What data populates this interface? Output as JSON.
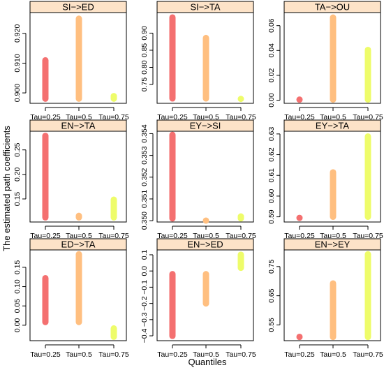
{
  "figure": {
    "ylabel": "The estimated path coefficients",
    "xlabel": "Quantiles",
    "bar_colors": [
      "#f47070",
      "#ffbf80",
      "#eefc6a"
    ]
  },
  "chart_data": [
    {
      "type": "bar",
      "title": "SI−>ED",
      "categories": [
        "Tau=0.25",
        "Tau=0.5",
        "Tau=0.75"
      ],
      "segments": [
        [
          0.897,
          0.912
        ],
        [
          0.897,
          0.926
        ],
        [
          0.897,
          0.9
        ]
      ],
      "ylim": [
        0.8965,
        0.927
      ],
      "yticks": [
        "0.900",
        "0.910",
        "0.920"
      ],
      "ytick_values": [
        0.9,
        0.91,
        0.92
      ]
    },
    {
      "type": "bar",
      "title": "SI−>TA",
      "categories": [
        "Tau=0.25",
        "Tau=0.5",
        "Tau=0.75"
      ],
      "segments": [
        [
          0.7,
          0.955
        ],
        [
          0.7,
          0.895
        ],
        [
          0.7,
          0.716
        ]
      ],
      "ylim": [
        0.695,
        0.96
      ],
      "yticks": [
        "0.75",
        "0.80",
        "0.85",
        "0.90"
      ],
      "ytick_values": [
        0.75,
        0.8,
        0.85,
        0.9
      ]
    },
    {
      "type": "bar",
      "title": "TA−>OU",
      "categories": [
        "Tau=0.25",
        "Tau=0.5",
        "Tau=0.75"
      ],
      "segments": [
        [
          -0.002,
          0.003
        ],
        [
          -0.002,
          0.069
        ],
        [
          -0.002,
          0.043
        ]
      ],
      "ylim": [
        -0.0025,
        0.0705
      ],
      "yticks": [
        "0.00",
        "0.02",
        "0.04",
        "0.06"
      ],
      "ytick_values": [
        0,
        0.02,
        0.04,
        0.06
      ]
    },
    {
      "type": "bar",
      "title": "EN−>TA",
      "categories": [
        "Tau=0.25",
        "Tau=0.5",
        "Tau=0.75"
      ],
      "segments": [
        [
          0.106,
          0.285
        ],
        [
          0.106,
          0.122
        ],
        [
          0.106,
          0.155
        ]
      ],
      "ylim": [
        0.103,
        0.288
      ],
      "yticks": [
        "0.15",
        "0.20",
        "0.25"
      ],
      "ytick_values": [
        0.15,
        0.2,
        0.25
      ]
    },
    {
      "type": "bar",
      "title": "EY−>SI",
      "categories": [
        "Tau=0.25",
        "Tau=0.5",
        "Tau=0.75"
      ],
      "segments": [
        [
          0.34996,
          0.35409
        ],
        [
          0.34996,
          0.35005
        ],
        [
          0.34996,
          0.35034
        ]
      ],
      "ylim": [
        0.34994,
        0.35411
      ],
      "yticks": [
        "0.350",
        "0.351",
        "0.352",
        "0.353",
        "0.354"
      ],
      "ytick_values": [
        0.35,
        0.351,
        0.352,
        0.353,
        0.354
      ]
    },
    {
      "type": "bar",
      "title": "EY−>TA",
      "categories": [
        "Tau=0.25",
        "Tau=0.5",
        "Tau=0.75"
      ],
      "segments": [
        [
          0.5885,
          0.5905
        ],
        [
          0.5885,
          0.613
        ],
        [
          0.5885,
          0.6303
        ]
      ],
      "ylim": [
        0.5875,
        0.6313
      ],
      "yticks": [
        "0.59",
        "0.60",
        "0.61",
        "0.62",
        "0.63"
      ],
      "ytick_values": [
        0.59,
        0.6,
        0.61,
        0.62,
        0.63
      ]
    },
    {
      "type": "bar",
      "title": "ED−>TA",
      "categories": [
        "Tau=0.25",
        "Tau=0.5",
        "Tau=0.75"
      ],
      "segments": [
        [
          0.0,
          0.13
        ],
        [
          0.0,
          0.192
        ],
        [
          -0.038,
          0.0
        ]
      ],
      "ylim": [
        -0.04,
        0.195
      ],
      "yticks": [
        "0.00",
        "0.05",
        "0.10",
        "0.15"
      ],
      "ytick_values": [
        0,
        0.05,
        0.1,
        0.15
      ]
    },
    {
      "type": "bar",
      "title": "EN−>ED",
      "categories": [
        "Tau=0.25",
        "Tau=0.5",
        "Tau=0.75"
      ],
      "segments": [
        [
          -0.42,
          0.0
        ],
        [
          -0.22,
          0.0
        ],
        [
          0.0,
          0.12
        ]
      ],
      "ylim": [
        -0.43,
        0.13
      ],
      "yticks": [
        "−0.4",
        "−0.3",
        "−0.2",
        "−0.1",
        "0.0",
        "0.1"
      ],
      "ytick_values": [
        -0.4,
        -0.3,
        -0.2,
        -0.1,
        0.0,
        0.1
      ]
    },
    {
      "type": "bar",
      "title": "EN−>EY",
      "categories": [
        "Tau=0.25",
        "Tau=0.5",
        "Tau=0.75"
      ],
      "segments": [
        [
          0.498,
          0.52
        ],
        [
          0.498,
          0.703
        ],
        [
          0.498,
          0.803
        ]
      ],
      "ylim": [
        0.496,
        0.807
      ],
      "yticks": [
        "0.55",
        "0.65",
        "0.75"
      ],
      "ytick_values": [
        0.55,
        0.65,
        0.75
      ]
    }
  ]
}
